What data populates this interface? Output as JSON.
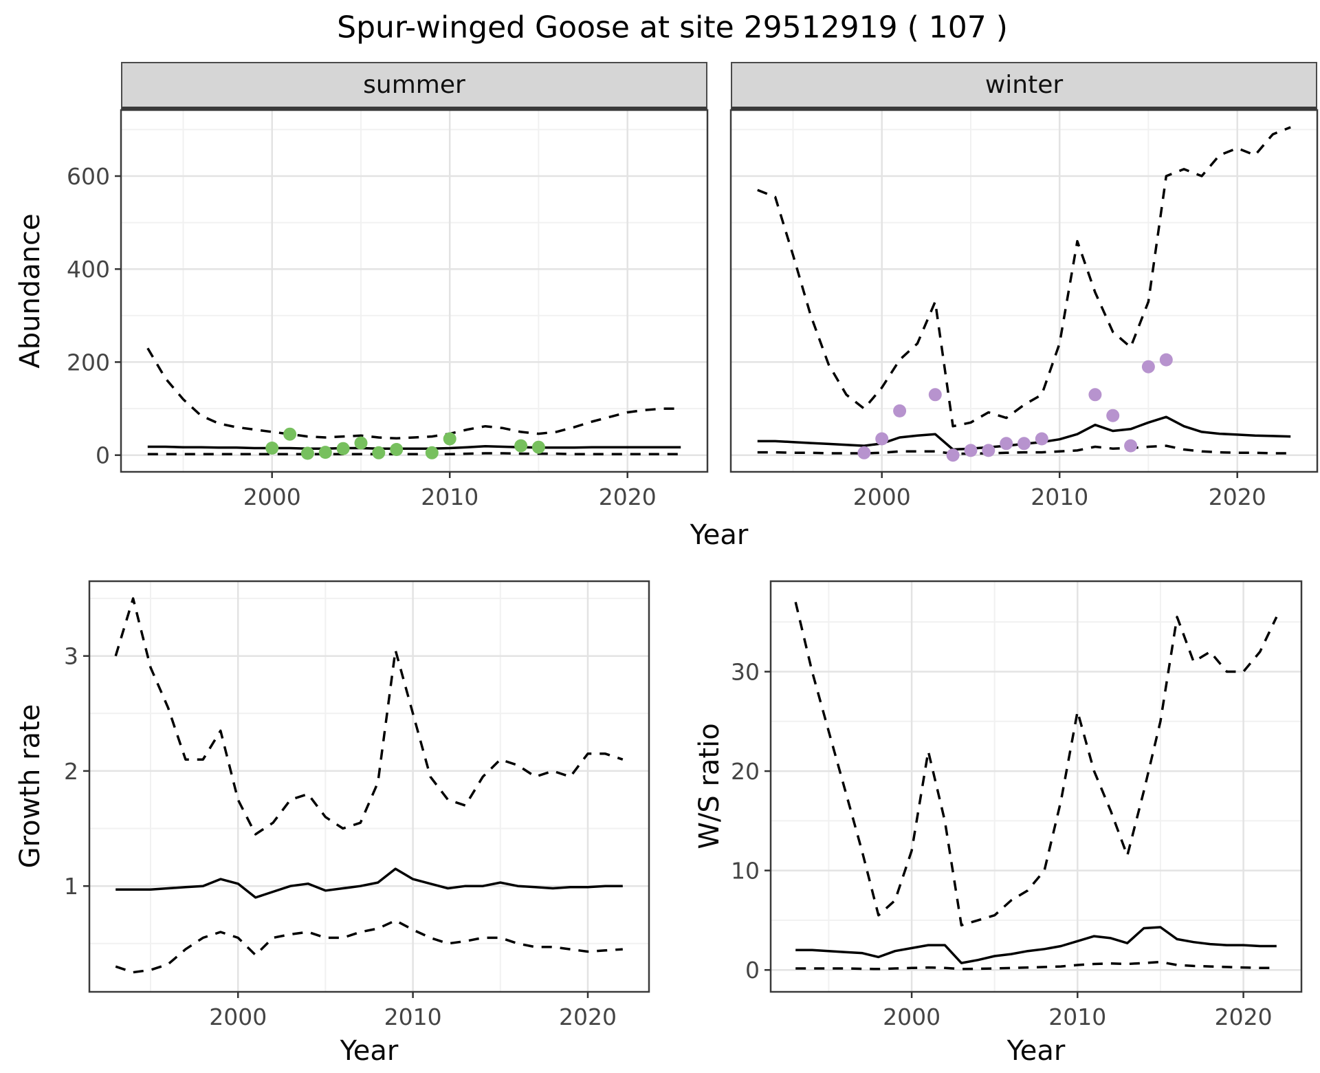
{
  "title": "Spur-winged Goose at site 29512919 ( 107 )",
  "colors": {
    "summer_points": "#77C05E",
    "winter_points": "#B793CE",
    "line": "#000000",
    "grid_major": "#E3E3E3",
    "grid_minor": "#F1F1F1",
    "panel_border": "#3A3A3A",
    "tick_mark": "#333333"
  },
  "chart_data": [
    {
      "name": "summer-abundance",
      "type": "line",
      "facet": "summer",
      "xlabel": "Year",
      "ylabel": "Abundance",
      "xlim": [
        1991.5,
        2024.5
      ],
      "ylim": [
        -36,
        742
      ],
      "xticks": [
        2000,
        2010,
        2020
      ],
      "yticks": [
        0,
        200,
        400,
        600
      ],
      "x": [
        1993,
        1994,
        1995,
        1996,
        1997,
        1998,
        1999,
        2000,
        2001,
        2002,
        2003,
        2004,
        2005,
        2006,
        2007,
        2008,
        2009,
        2010,
        2011,
        2012,
        2013,
        2014,
        2015,
        2016,
        2017,
        2018,
        2019,
        2020,
        2021,
        2022,
        2023
      ],
      "series": [
        {
          "name": "upper-ci",
          "style": "dashed",
          "values": [
            230,
            165,
            120,
            85,
            68,
            60,
            55,
            50,
            45,
            40,
            38,
            40,
            42,
            38,
            36,
            38,
            40,
            46,
            55,
            62,
            58,
            50,
            46,
            50,
            60,
            72,
            82,
            92,
            97,
            100,
            100
          ]
        },
        {
          "name": "median",
          "style": "solid",
          "values": [
            18,
            18,
            17,
            17,
            16,
            16,
            15,
            15,
            15,
            14,
            14,
            15,
            15,
            14,
            14,
            14,
            14,
            15,
            17,
            19,
            18,
            17,
            16,
            16,
            16,
            17,
            17,
            17,
            17,
            17,
            17
          ]
        },
        {
          "name": "lower-ci",
          "style": "dashed",
          "values": [
            2,
            2,
            2,
            2,
            2,
            2,
            2,
            2,
            2,
            2,
            2,
            2,
            2,
            2,
            2,
            2,
            2,
            2,
            3,
            4,
            4,
            3,
            3,
            3,
            2,
            2,
            2,
            2,
            2,
            2,
            2
          ]
        }
      ],
      "points": {
        "name": "summer-observations",
        "color_key": "summer_points",
        "x": [
          2000,
          2001,
          2002,
          2003,
          2004,
          2005,
          2006,
          2007,
          2009,
          2010,
          2014,
          2015
        ],
        "y": [
          15,
          45,
          4,
          6,
          14,
          26,
          5,
          12,
          5,
          35,
          20,
          17
        ]
      }
    },
    {
      "name": "winter-abundance",
      "type": "line",
      "facet": "winter",
      "xlabel": "Year",
      "ylabel": "",
      "xlim": [
        1991.5,
        2024.5
      ],
      "ylim": [
        -36,
        742
      ],
      "xticks": [
        2000,
        2010,
        2020
      ],
      "yticks": [
        0,
        200,
        400,
        600
      ],
      "x": [
        1993,
        1994,
        1995,
        1996,
        1997,
        1998,
        1999,
        2000,
        2001,
        2002,
        2003,
        2004,
        2005,
        2006,
        2007,
        2008,
        2009,
        2010,
        2011,
        2012,
        2013,
        2014,
        2015,
        2016,
        2017,
        2018,
        2019,
        2020,
        2021,
        2022,
        2023
      ],
      "series": [
        {
          "name": "upper-ci",
          "style": "dashed",
          "values": [
            570,
            555,
            430,
            300,
            195,
            130,
            100,
            145,
            205,
            240,
            330,
            62,
            70,
            92,
            80,
            108,
            130,
            240,
            460,
            350,
            265,
            232,
            330,
            600,
            615,
            600,
            645,
            660,
            645,
            690,
            705
          ]
        },
        {
          "name": "median",
          "style": "solid",
          "values": [
            30,
            30,
            28,
            26,
            24,
            22,
            20,
            25,
            38,
            42,
            45,
            12,
            14,
            17,
            20,
            24,
            28,
            34,
            45,
            65,
            52,
            56,
            70,
            82,
            62,
            50,
            46,
            44,
            42,
            41,
            40
          ]
        },
        {
          "name": "lower-ci",
          "style": "dashed",
          "values": [
            6,
            6,
            5,
            5,
            4,
            4,
            4,
            5,
            8,
            8,
            8,
            3,
            3,
            4,
            5,
            6,
            6,
            8,
            10,
            18,
            14,
            15,
            18,
            20,
            12,
            8,
            6,
            5,
            5,
            4,
            4
          ]
        }
      ],
      "points": {
        "name": "winter-observations",
        "color_key": "winter_points",
        "x": [
          1999,
          2000,
          2001,
          2003,
          2004,
          2005,
          2006,
          2007,
          2008,
          2009,
          2012,
          2013,
          2014,
          2015,
          2016
        ],
        "y": [
          5,
          35,
          95,
          130,
          0,
          10,
          10,
          25,
          25,
          35,
          130,
          85,
          20,
          190,
          205
        ]
      }
    },
    {
      "name": "growth-rate",
      "type": "line",
      "facet": "",
      "xlabel": "Year",
      "ylabel": "Growth rate",
      "xlim": [
        1991.5,
        2023.5
      ],
      "ylim": [
        0.08,
        3.65
      ],
      "xticks": [
        2000,
        2010,
        2020
      ],
      "yticks": [
        1,
        2,
        3
      ],
      "x": [
        1993,
        1994,
        1995,
        1996,
        1997,
        1998,
        1999,
        2000,
        2001,
        2002,
        2003,
        2004,
        2005,
        2006,
        2007,
        2008,
        2009,
        2010,
        2011,
        2012,
        2013,
        2014,
        2015,
        2016,
        2017,
        2018,
        2019,
        2020,
        2021,
        2022
      ],
      "series": [
        {
          "name": "upper-ci",
          "style": "dashed",
          "values": [
            3.0,
            3.5,
            2.9,
            2.55,
            2.1,
            2.1,
            2.35,
            1.75,
            1.45,
            1.55,
            1.75,
            1.8,
            1.6,
            1.5,
            1.55,
            1.9,
            3.05,
            2.5,
            1.95,
            1.75,
            1.7,
            1.95,
            2.1,
            2.05,
            1.95,
            2.0,
            1.95,
            2.15,
            2.15,
            2.1
          ]
        },
        {
          "name": "median",
          "style": "solid",
          "values": [
            0.97,
            0.97,
            0.97,
            0.98,
            0.99,
            1.0,
            1.06,
            1.02,
            0.9,
            0.95,
            1.0,
            1.02,
            0.96,
            0.98,
            1.0,
            1.03,
            1.15,
            1.06,
            1.02,
            0.98,
            1.0,
            1.0,
            1.03,
            1.0,
            0.99,
            0.98,
            0.99,
            0.99,
            1.0,
            1.0
          ]
        },
        {
          "name": "lower-ci",
          "style": "dashed",
          "values": [
            0.3,
            0.25,
            0.27,
            0.32,
            0.45,
            0.55,
            0.6,
            0.55,
            0.4,
            0.55,
            0.58,
            0.6,
            0.55,
            0.55,
            0.6,
            0.63,
            0.7,
            0.62,
            0.55,
            0.5,
            0.52,
            0.55,
            0.55,
            0.5,
            0.47,
            0.47,
            0.45,
            0.43,
            0.44,
            0.45
          ]
        }
      ],
      "points": null
    },
    {
      "name": "ws-ratio",
      "type": "line",
      "facet": "",
      "xlabel": "Year",
      "ylabel": "W/S ratio",
      "xlim": [
        1991.5,
        2023.5
      ],
      "ylim": [
        -2.2,
        39.1
      ],
      "xticks": [
        2000,
        2010,
        2020
      ],
      "yticks": [
        0,
        10,
        20,
        30
      ],
      "x": [
        1993,
        1994,
        1995,
        1996,
        1997,
        1998,
        1999,
        2000,
        2001,
        2002,
        2003,
        2004,
        2005,
        2006,
        2007,
        2008,
        2009,
        2010,
        2011,
        2012,
        2013,
        2014,
        2015,
        2016,
        2017,
        2018,
        2019,
        2020,
        2021,
        2022
      ],
      "series": [
        {
          "name": "upper-ci",
          "style": "dashed",
          "values": [
            37,
            30,
            24,
            18,
            12,
            5.5,
            7,
            12,
            22,
            15,
            4.5,
            5,
            5.5,
            7,
            8,
            10,
            17,
            26,
            20,
            16,
            11.5,
            18,
            25,
            35.5,
            31,
            32,
            30,
            30,
            32,
            35.5
          ]
        },
        {
          "name": "median",
          "style": "solid",
          "values": [
            2.0,
            2.0,
            1.9,
            1.8,
            1.7,
            1.3,
            1.9,
            2.2,
            2.5,
            2.5,
            0.7,
            1.0,
            1.4,
            1.6,
            1.9,
            2.1,
            2.4,
            2.9,
            3.4,
            3.2,
            2.7,
            4.2,
            4.3,
            3.1,
            2.8,
            2.6,
            2.5,
            2.5,
            2.4,
            2.4
          ]
        },
        {
          "name": "lower-ci",
          "style": "dashed",
          "values": [
            0.15,
            0.15,
            0.15,
            0.15,
            0.12,
            0.1,
            0.15,
            0.2,
            0.25,
            0.2,
            0.1,
            0.12,
            0.15,
            0.2,
            0.25,
            0.3,
            0.35,
            0.5,
            0.6,
            0.65,
            0.6,
            0.7,
            0.8,
            0.5,
            0.4,
            0.35,
            0.3,
            0.25,
            0.2,
            0.2
          ]
        }
      ],
      "points": null
    }
  ]
}
